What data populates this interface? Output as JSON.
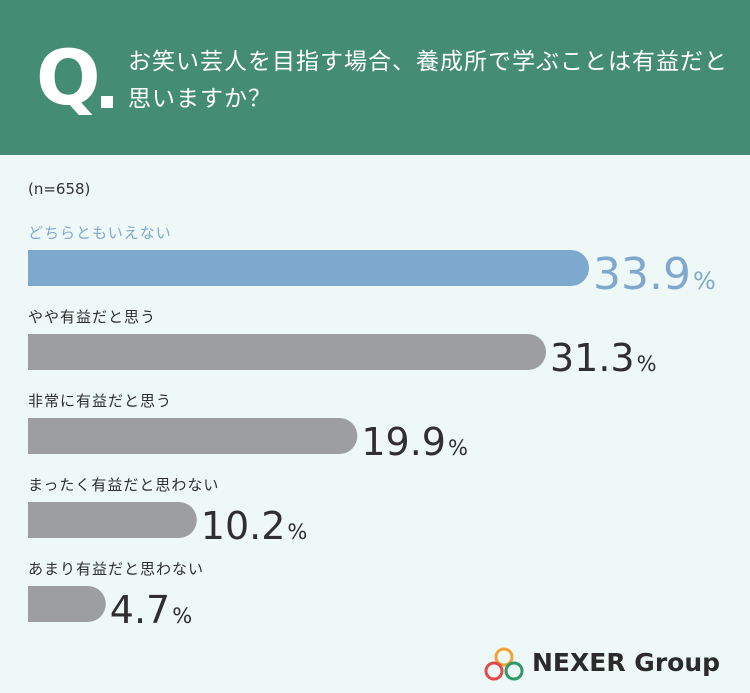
{
  "question": {
    "mark": "Q",
    "text": "お笑い芸人を目指す場合、養成所で学ぶことは有益だと思いますか？"
  },
  "sample": "(n=658)",
  "brand": {
    "name": "NEXER Group"
  },
  "colors": {
    "header": "#448d74",
    "background": "#eef8f6",
    "highlight_bar": "#7fa8cf",
    "highlight_text": "#7fa8cf",
    "bar": "#9d9ea2",
    "text": "#2f2f2f"
  },
  "chart_data": {
    "type": "bar",
    "orientation": "horizontal",
    "unit": "%",
    "categories": [
      "どちらともいえない",
      "やや有益だと思う",
      "非常に有益だと思う",
      "まったく有益だと思わない",
      "あまり有益だと思わない"
    ],
    "values": [
      33.9,
      31.3,
      19.9,
      10.2,
      4.7
    ],
    "value_labels": [
      "33.9",
      "31.3",
      "19.9",
      "10.2",
      "4.7"
    ],
    "highlight_index": 0,
    "xlim": [
      0,
      100
    ],
    "grid": false,
    "legend": "none"
  }
}
